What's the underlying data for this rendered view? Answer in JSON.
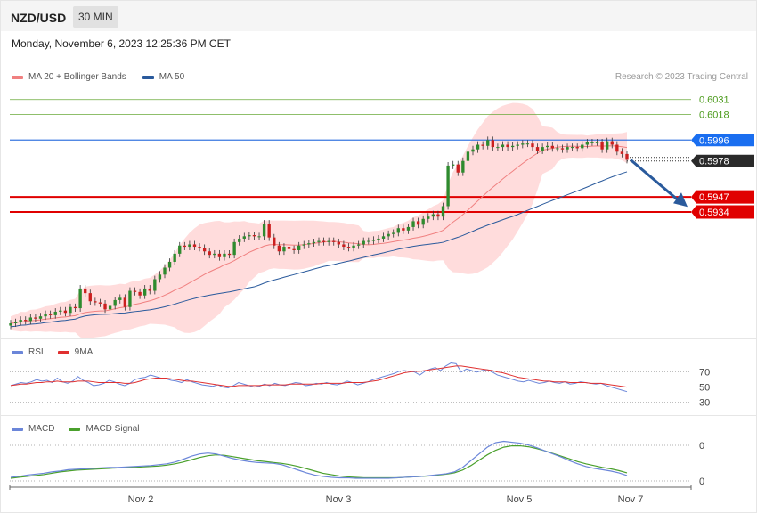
{
  "header": {
    "pair": "NZD/USD",
    "timeframe": "30 MIN",
    "datetime": "Monday, November 6, 2023 12:25:36 PM CET"
  },
  "colors": {
    "ma20": "#f08080",
    "ma50": "#2a5a9c",
    "bb": "#ffd6d6",
    "up": "#2e8b2e",
    "down": "#cc1f1f",
    "rsi": "#6b86d9",
    "rsi9": "#e03030",
    "macd": "#6b86d9",
    "signal": "#4aa02c"
  },
  "legend": {
    "ma20": "MA 20 + Bollinger Bands",
    "ma50": "MA 50",
    "rsi": "RSI",
    "rsi9": "9MA",
    "macd": "MACD",
    "signal": "MACD Signal"
  },
  "credit": "Research © 2023 Trading Central",
  "chart_data": [
    {
      "type": "candlestick",
      "ylim": [
        0.5828,
        0.604
      ],
      "x_labels": [
        "Nov 2",
        "Nov 3",
        "Nov 5",
        "Nov 7"
      ],
      "price_levels": [
        {
          "label": "0.6031",
          "value": 0.6031,
          "color": "#6aaa3a",
          "style": "thin"
        },
        {
          "label": "0.6018",
          "value": 0.6018,
          "color": "#6aaa3a",
          "style": "thin"
        },
        {
          "label": "0.5996",
          "value": 0.5996,
          "color": "#3a78e0",
          "style": "blue"
        },
        {
          "label": "0.5978",
          "value": 0.5978,
          "color": "#2a2a2a",
          "style": "current"
        },
        {
          "label": "0.5947",
          "value": 0.5947,
          "color": "#e00000",
          "style": "red"
        },
        {
          "label": "0.5934",
          "value": 0.5934,
          "color": "#e00000",
          "style": "red"
        }
      ],
      "close": [
        0.5838,
        0.5839,
        0.5841,
        0.584,
        0.5843,
        0.5842,
        0.5844,
        0.5846,
        0.5845,
        0.5848,
        0.5849,
        0.5847,
        0.5852,
        0.5851,
        0.5868,
        0.5864,
        0.5857,
        0.5856,
        0.5855,
        0.585,
        0.5853,
        0.5858,
        0.586,
        0.5852,
        0.5866,
        0.5865,
        0.5862,
        0.5868,
        0.5866,
        0.5876,
        0.588,
        0.5886,
        0.5891,
        0.5898,
        0.5905,
        0.5904,
        0.5906,
        0.5904,
        0.5903,
        0.59,
        0.5897,
        0.5898,
        0.5895,
        0.5898,
        0.5897,
        0.5908,
        0.5911,
        0.5913,
        0.5914,
        0.5913,
        0.5913,
        0.5924,
        0.5912,
        0.5905,
        0.59,
        0.5904,
        0.5902,
        0.5901,
        0.5905,
        0.5906,
        0.5907,
        0.5908,
        0.5909,
        0.5908,
        0.5909,
        0.5908,
        0.5906,
        0.5904,
        0.5903,
        0.5905,
        0.5906,
        0.5909,
        0.5909,
        0.591,
        0.5911,
        0.5913,
        0.5915,
        0.5916,
        0.592,
        0.5918,
        0.5921,
        0.5926,
        0.5923,
        0.5928,
        0.593,
        0.5932,
        0.593,
        0.5939,
        0.5974,
        0.5975,
        0.5968,
        0.5978,
        0.5986,
        0.5988,
        0.5992,
        0.5991,
        0.5996,
        0.599,
        0.599,
        0.5992,
        0.599,
        0.5991,
        0.5992,
        0.5993,
        0.5993,
        0.599,
        0.5987,
        0.599,
        0.5991,
        0.5989,
        0.5989,
        0.5988,
        0.599,
        0.599,
        0.5989,
        0.5992,
        0.5994,
        0.5994,
        0.5994,
        0.5988,
        0.5995,
        0.5992,
        0.5986,
        0.5984,
        0.5979
      ],
      "annotation": {
        "type": "arrow",
        "direction": "down",
        "target": 0.594
      }
    },
    {
      "type": "line",
      "name": "rsi",
      "y_labels": [
        "70",
        "50",
        "30"
      ],
      "ylim": [
        20,
        85
      ],
      "series_rsi": [
        52,
        54,
        56,
        55,
        57,
        60,
        58,
        59,
        56,
        62,
        57,
        55,
        58,
        64,
        59,
        56,
        52,
        53,
        55,
        59,
        57,
        54,
        52,
        55,
        60,
        62,
        63,
        66,
        64,
        62,
        61,
        59,
        58,
        56,
        60,
        57,
        55,
        53,
        52,
        51,
        53,
        50,
        49,
        52,
        56,
        54,
        52,
        50,
        51,
        54,
        52,
        55,
        53,
        52,
        54,
        56,
        55,
        52,
        53,
        55,
        54,
        56,
        54,
        53,
        55,
        58,
        56,
        53,
        55,
        57,
        60,
        62,
        64,
        66,
        68,
        71,
        72,
        71,
        70,
        66,
        71,
        74,
        76,
        72,
        78,
        82,
        81,
        70,
        74,
        72,
        70,
        72,
        73,
        70,
        66,
        64,
        62,
        60,
        58,
        57,
        59,
        57,
        55,
        56,
        58,
        56,
        55,
        57,
        54,
        55,
        57,
        56,
        55,
        54,
        55,
        52,
        50,
        48,
        46,
        44
      ],
      "series_ma": [
        52,
        53,
        54,
        54,
        55,
        56,
        56,
        57,
        57,
        58,
        57,
        57,
        57,
        58,
        58,
        58,
        57,
        56,
        56,
        56,
        56,
        56,
        55,
        55,
        56,
        58,
        60,
        61,
        62,
        62,
        62,
        61,
        60,
        59,
        58,
        58,
        57,
        56,
        55,
        54,
        53,
        52,
        51,
        51,
        52,
        52,
        52,
        52,
        52,
        53,
        53,
        53,
        53,
        53,
        54,
        54,
        54,
        54,
        54,
        54,
        55,
        55,
        55,
        55,
        55,
        56,
        56,
        56,
        56,
        57,
        58,
        59,
        61,
        63,
        65,
        67,
        69,
        70,
        71,
        71,
        72,
        73,
        74,
        75,
        76,
        77,
        78,
        78,
        77,
        76,
        75,
        74,
        73,
        72,
        70,
        69,
        67,
        65,
        63,
        62,
        61,
        60,
        59,
        58,
        58,
        57,
        57,
        57,
        56,
        56,
        56,
        56,
        55,
        55,
        55,
        54,
        53,
        52,
        51,
        50
      ]
    },
    {
      "type": "line",
      "name": "macd",
      "y_labels": [
        "0",
        "0"
      ],
      "series_macd": [
        0.08,
        0.1,
        0.13,
        0.15,
        0.17,
        0.2,
        0.22,
        0.25,
        0.26,
        0.27,
        0.28,
        0.29,
        0.3,
        0.3,
        0.31,
        0.32,
        0.33,
        0.34,
        0.36,
        0.38,
        0.42,
        0.48,
        0.55,
        0.6,
        0.62,
        0.6,
        0.55,
        0.5,
        0.46,
        0.43,
        0.41,
        0.4,
        0.39,
        0.36,
        0.3,
        0.24,
        0.18,
        0.13,
        0.1,
        0.08,
        0.07,
        0.07,
        0.06,
        0.06,
        0.06,
        0.06,
        0.06,
        0.07,
        0.08,
        0.09,
        0.1,
        0.12,
        0.14,
        0.16,
        0.2,
        0.3,
        0.45,
        0.6,
        0.75,
        0.85,
        0.88,
        0.86,
        0.84,
        0.8,
        0.74,
        0.67,
        0.6,
        0.53,
        0.45,
        0.38,
        0.32,
        0.28,
        0.25,
        0.22,
        0.18,
        0.12
      ],
      "series_signal": [
        0.06,
        0.08,
        0.1,
        0.12,
        0.14,
        0.17,
        0.2,
        0.22,
        0.24,
        0.25,
        0.26,
        0.27,
        0.28,
        0.29,
        0.3,
        0.3,
        0.31,
        0.32,
        0.33,
        0.35,
        0.38,
        0.42,
        0.47,
        0.52,
        0.56,
        0.58,
        0.57,
        0.54,
        0.51,
        0.48,
        0.45,
        0.43,
        0.41,
        0.39,
        0.36,
        0.32,
        0.27,
        0.22,
        0.17,
        0.14,
        0.11,
        0.09,
        0.08,
        0.07,
        0.07,
        0.07,
        0.07,
        0.07,
        0.08,
        0.09,
        0.1,
        0.11,
        0.13,
        0.15,
        0.18,
        0.24,
        0.34,
        0.46,
        0.58,
        0.68,
        0.75,
        0.78,
        0.78,
        0.76,
        0.72,
        0.67,
        0.61,
        0.55,
        0.49,
        0.43,
        0.38,
        0.34,
        0.3,
        0.27,
        0.23,
        0.18
      ]
    }
  ]
}
